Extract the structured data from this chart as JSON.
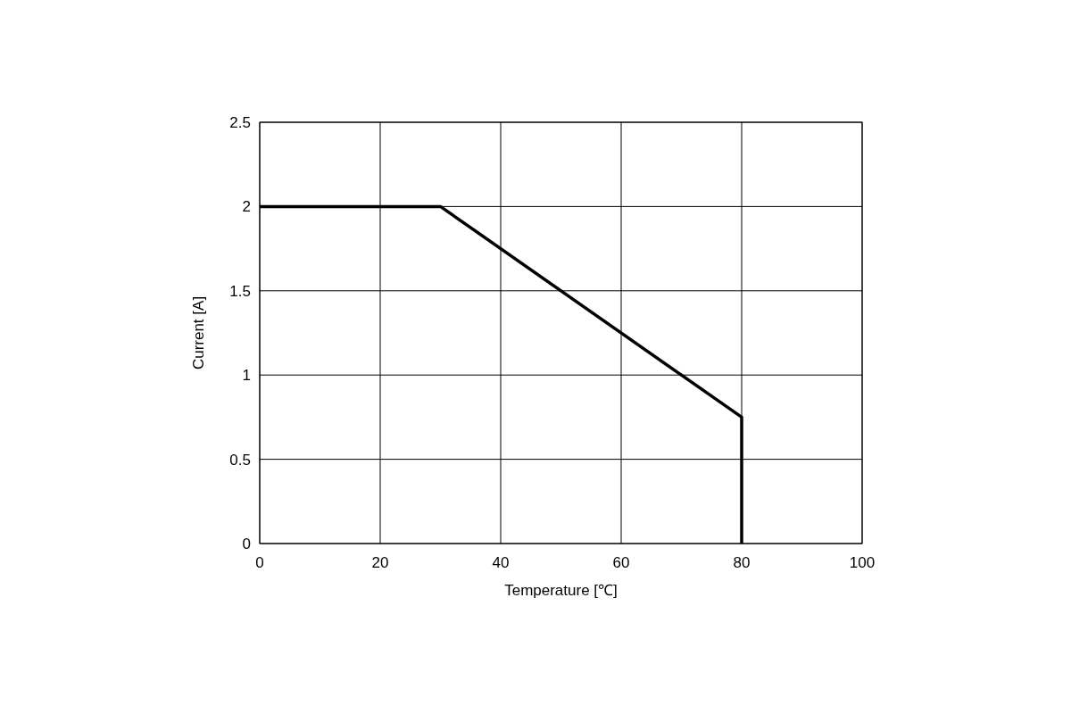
{
  "chart_data": {
    "type": "line",
    "xlabel": "Temperature [℃]",
    "ylabel": "Current [A]",
    "x": [
      0,
      30,
      80,
      80
    ],
    "series": [
      {
        "color": "#000000",
        "values": [
          2,
          2,
          0.75,
          0
        ]
      }
    ],
    "xlim": [
      0,
      100
    ],
    "xticks": [
      0,
      20,
      40,
      60,
      80,
      100
    ],
    "ylim": [
      0,
      2.5
    ],
    "yticks": [
      0,
      0.5,
      1,
      1.5,
      2,
      2.5
    ],
    "grid": true,
    "marker": "none",
    "line_style": "solid"
  }
}
